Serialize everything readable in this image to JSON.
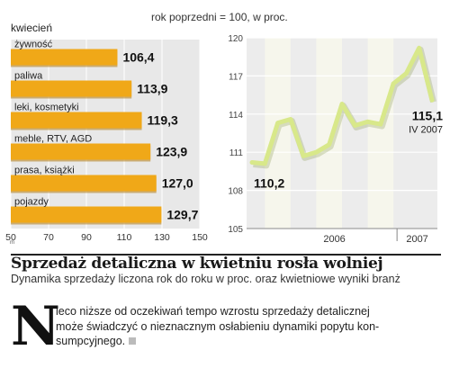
{
  "header": {
    "unit_note": "rok poprzedni = 100, w proc."
  },
  "chart_data": [
    {
      "type": "bar",
      "orientation": "horizontal",
      "title": "kwiecień",
      "categories": [
        "żywność",
        "paliwa",
        "leki, kosmetyki",
        "meble, RTV, AGD",
        "prasa, książki",
        "pojazdy"
      ],
      "values": [
        106.4,
        113.9,
        119.3,
        123.9,
        127.0,
        129.7
      ],
      "value_labels": [
        "106,4",
        "113,9",
        "119,3",
        "123,9",
        "127,0",
        "129,7"
      ],
      "xlim": [
        50,
        150
      ],
      "x_ticks": [
        "50",
        "70",
        "90",
        "110",
        "130",
        "150"
      ],
      "grid": true,
      "bar_color": "#f0a818",
      "panel_color": "#e8e8e8"
    },
    {
      "type": "line",
      "series": [
        {
          "values": [
            110.2,
            110.1,
            113.3,
            113.6,
            110.7,
            111.0,
            111.6,
            114.8,
            113.1,
            113.4,
            113.2,
            116.4,
            117.2,
            119.2,
            115.1
          ]
        }
      ],
      "ylim": [
        105,
        120
      ],
      "y_ticks": [
        "105",
        "108",
        "111",
        "114",
        "117",
        "120"
      ],
      "x_labels": [
        "2006",
        "2007"
      ],
      "grid": true,
      "line_color": "#d8e88a",
      "annotations": {
        "first_value": "110,2",
        "last_value": "115,1",
        "last_label": "IV 2007"
      }
    }
  ],
  "article": {
    "title": "Sprzedaż detaliczna w kwietniu rosła wolniej",
    "subtitle": "Dynamika sprzedaży liczona rok do roku w proc. oraz kwietniowe wyniki branż",
    "drop_cap": "N",
    "body_line1": "ieco niższe od oczekiwań tempo wzrostu sprzedaży detalicznej",
    "body_line2": "może świadczyć o nieznacznym osłabieniu dynamiki popytu kon-",
    "body_line3": "sumpcyjnego."
  }
}
